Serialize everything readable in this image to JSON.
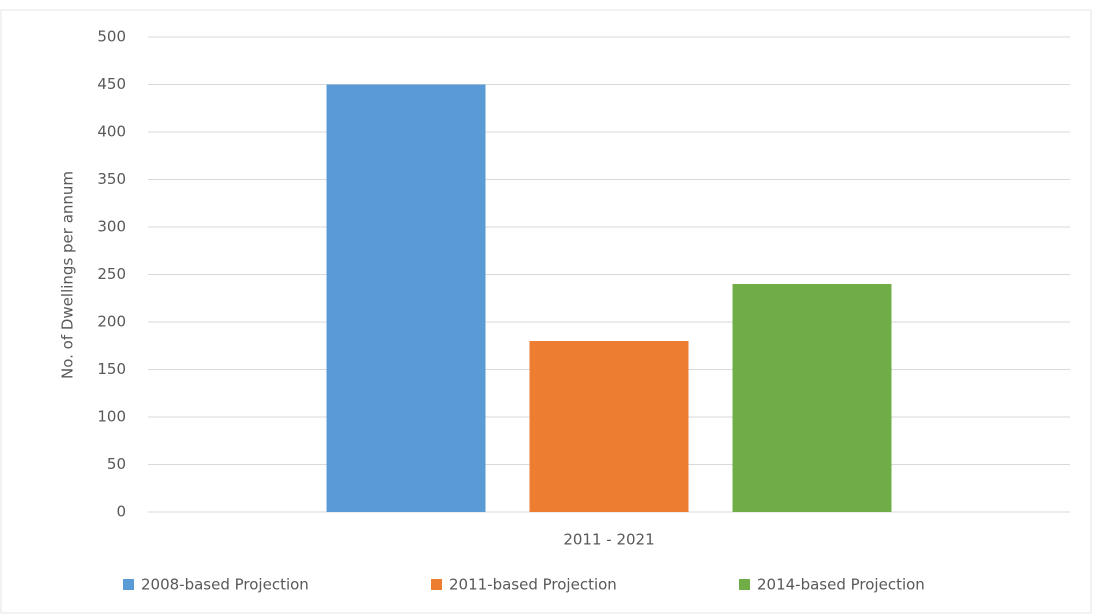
{
  "chart_data": {
    "type": "bar",
    "y_label": "No. of Dwellings per annum",
    "categories": [
      "2011 - 2021"
    ],
    "series": [
      {
        "name": "2008-based Projection",
        "color": "#5b9bd5",
        "values": [
          450
        ]
      },
      {
        "name": "2011-based Projection",
        "color": "#ed7d31",
        "values": [
          180
        ]
      },
      {
        "name": "2014-based Projection",
        "color": "#70ad47",
        "values": [
          240
        ]
      }
    ],
    "ylim": [
      0,
      500
    ],
    "yticks": [
      0,
      50,
      100,
      150,
      200,
      250,
      300,
      350,
      400,
      450,
      500
    ],
    "grid": true,
    "legend": "bottom"
  }
}
